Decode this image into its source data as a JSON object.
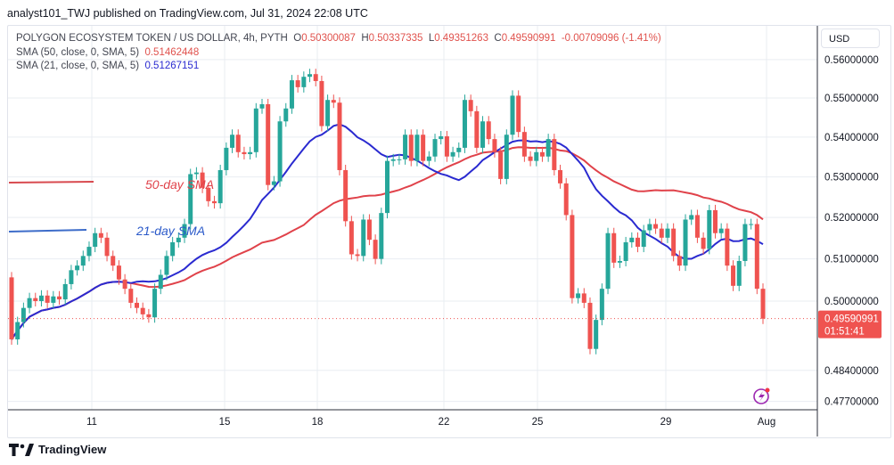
{
  "header": {
    "published": "analyst101_TWJ published on TradingView.com, Jul 31, 2024 22:08 UTC"
  },
  "legend": {
    "symbol": "POLYGON ECOSYSTEM TOKEN / US DOLLAR, 4h, PYTH",
    "o_label": "O",
    "o": "0.50300087",
    "h_label": "H",
    "h": "0.50337335",
    "l_label": "L",
    "l": "0.49351263",
    "c_label": "C",
    "c": "0.49590991",
    "change": "-0.00709096 (-1.41%)",
    "sma50_label": "SMA (50, close, 0, SMA, 5)",
    "sma50_value": "0.51462448",
    "sma21_label": "SMA (21, close, 0, SMA, 5)",
    "sma21_value": "0.51267151"
  },
  "currency": "USD",
  "last_price": {
    "price": "0.49590991",
    "countdown": "01:51:41"
  },
  "footer": {
    "brand": "TradingView"
  },
  "colors": {
    "up": "#26a69a",
    "down": "#ef5350",
    "sma50": "#e0424a",
    "sma21": "#2a2ad0",
    "grid": "#e9edf2"
  },
  "chart_data": {
    "type": "candlestick",
    "timeframe": "4h",
    "yscale": "log",
    "ylim": [
      0.474,
      0.5645
    ],
    "grid": true,
    "y_ticks": [
      "0.56000000",
      "0.55000000",
      "0.54000000",
      "0.53000000",
      "0.52000000",
      "0.51000000",
      "0.50000000",
      "0.48400000",
      "0.47700000"
    ],
    "x_ticks": [
      "11",
      "15",
      "18",
      "22",
      "25",
      "29",
      "Aug"
    ],
    "annotations": [
      {
        "text": "50-day SMA",
        "color": "#e0424a"
      },
      {
        "text": "21-day SMA",
        "color": "#2a59c9"
      }
    ],
    "first_open": 0.5056,
    "closes": [
      0.4911,
      0.4951,
      0.4984,
      0.5007,
      0.5,
      0.5013,
      0.4996,
      0.5011,
      0.5004,
      0.504,
      0.5073,
      0.5084,
      0.5107,
      0.5129,
      0.5162,
      0.5151,
      0.5107,
      0.5084,
      0.5051,
      0.5029,
      0.4996,
      0.4984,
      0.4969,
      0.4962,
      0.5029,
      0.5062,
      0.5107,
      0.514,
      0.5151,
      0.5184,
      0.5307,
      0.5311,
      0.5273,
      0.524,
      0.5235,
      0.5317,
      0.5373,
      0.5406,
      0.5362,
      0.5357,
      0.5362,
      0.5473,
      0.5484,
      0.528,
      0.5289,
      0.544,
      0.5473,
      0.5546,
      0.5528,
      0.5555,
      0.5562,
      0.5544,
      0.5428,
      0.5495,
      0.5488,
      0.5317,
      0.5191,
      0.5111,
      0.5107,
      0.5195,
      0.5146,
      0.51,
      0.5211,
      0.534,
      0.5344,
      0.5344,
      0.5406,
      0.534,
      0.5406,
      0.534,
      0.5351,
      0.5395,
      0.5402,
      0.5351,
      0.5362,
      0.5373,
      0.5495,
      0.5466,
      0.5373,
      0.544,
      0.5395,
      0.5362,
      0.5295,
      0.5406,
      0.5506,
      0.5413,
      0.5351,
      0.534,
      0.5362,
      0.5351,
      0.5395,
      0.5317,
      0.5284,
      0.5206,
      0.5007,
      0.5018,
      0.4996,
      0.4889,
      0.4956,
      0.5029,
      0.5162,
      0.5091,
      0.5095,
      0.514,
      0.5151,
      0.5129,
      0.5169,
      0.5184,
      0.5173,
      0.5151,
      0.5173,
      0.5107,
      0.5084,
      0.5195,
      0.5206,
      0.5151,
      0.5124,
      0.5218,
      0.5162,
      0.5173,
      0.5084,
      0.5036,
      0.5095,
      0.5184,
      0.5184,
      0.5029,
      0.4959
    ]
  }
}
